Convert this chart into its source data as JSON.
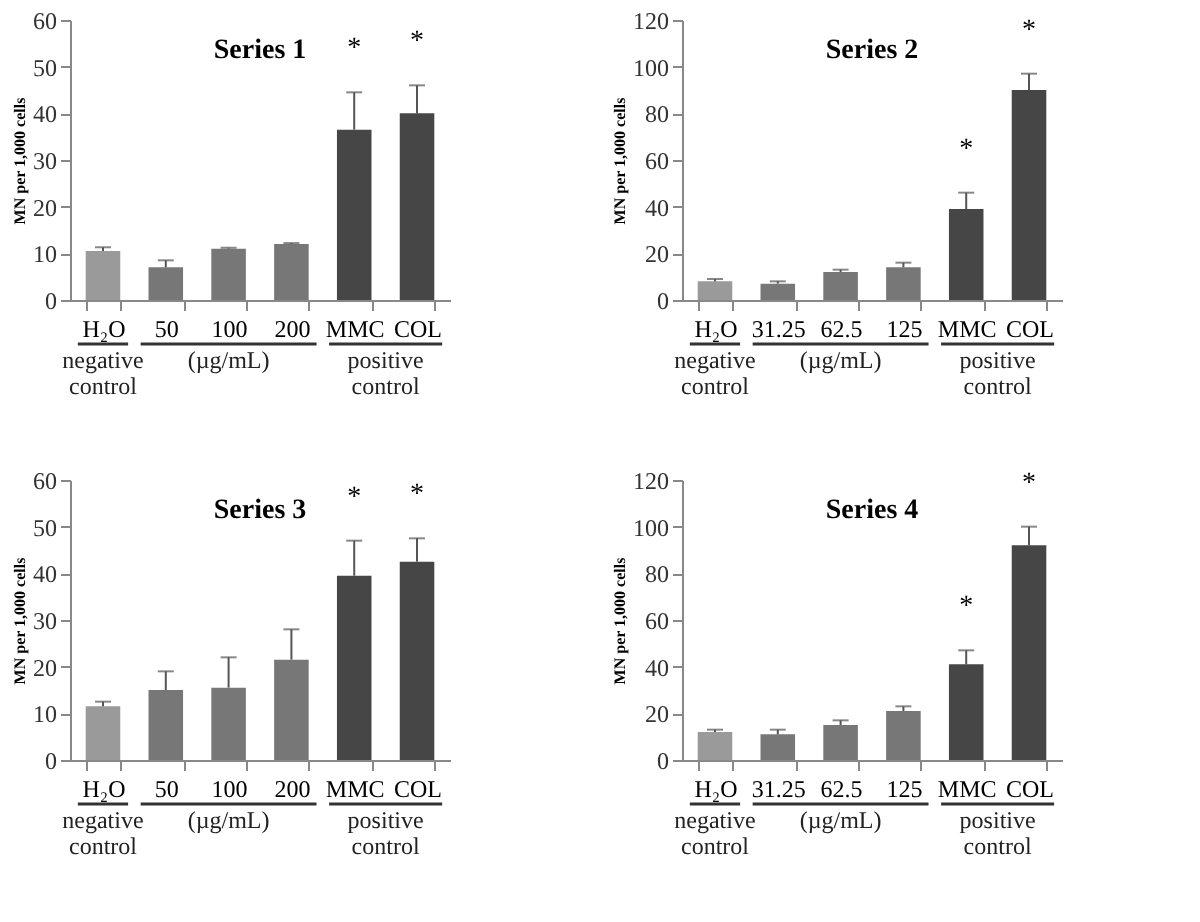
{
  "chart_data": [
    {
      "type": "bar",
      "title": "Series 1",
      "ylabel": "MN per 1,000 cells",
      "categories": [
        "H₂O",
        "50",
        "100",
        "200",
        "MMC",
        "COL"
      ],
      "values": [
        10.5,
        7,
        11,
        12,
        36.5,
        40
      ],
      "errors": [
        0.8,
        1.5,
        0.2,
        0.2,
        8,
        6
      ],
      "colors": [
        "#9a9a9a",
        "#777777",
        "#777777",
        "#777777",
        "#464646",
        "#464646"
      ],
      "ylim": [
        0,
        60
      ],
      "yticks": [
        0,
        10,
        20,
        30,
        40,
        50,
        60
      ],
      "annotations": [
        "negative control",
        "(µg/mL)",
        "positive control",
        "*",
        "*"
      ]
    },
    {
      "type": "bar",
      "title": "Series 2",
      "ylabel": "MN per 1,000 cells",
      "categories": [
        "H₂O",
        "31.25",
        "62.5",
        "125",
        "MMC",
        "COL"
      ],
      "values": [
        8,
        7,
        12,
        14,
        39,
        90
      ],
      "errors": [
        1,
        1,
        1,
        2,
        7,
        7
      ],
      "colors": [
        "#9a9a9a",
        "#777777",
        "#777777",
        "#777777",
        "#464646",
        "#464646"
      ],
      "ylim": [
        0,
        120
      ],
      "yticks": [
        0,
        20,
        40,
        60,
        80,
        100,
        120
      ],
      "annotations": [
        "negative control",
        "(µg/mL)",
        "positive control",
        "*",
        "*"
      ]
    },
    {
      "type": "bar",
      "title": "Series 3",
      "ylabel": "MN per 1,000 cells",
      "categories": [
        "H₂O",
        "50",
        "100",
        "200",
        "MMC",
        "COL"
      ],
      "values": [
        11.5,
        15,
        15.5,
        21.5,
        39.5,
        42.5
      ],
      "errors": [
        1,
        4,
        6.5,
        6.5,
        7.5,
        5
      ],
      "colors": [
        "#9a9a9a",
        "#777777",
        "#777777",
        "#777777",
        "#464646",
        "#464646"
      ],
      "ylim": [
        0,
        60
      ],
      "yticks": [
        0,
        10,
        20,
        30,
        40,
        50,
        60
      ],
      "annotations": [
        "negative control",
        "(µg/mL)",
        "positive control",
        "*",
        "*"
      ]
    },
    {
      "type": "bar",
      "title": "Series 4",
      "ylabel": "MN per 1,000 cells",
      "categories": [
        "H₂O",
        "31.25",
        "62.5",
        "125",
        "MMC",
        "COL"
      ],
      "values": [
        12,
        11,
        15,
        21,
        41,
        92
      ],
      "errors": [
        1,
        2,
        2,
        2,
        6,
        8
      ],
      "colors": [
        "#9a9a9a",
        "#777777",
        "#777777",
        "#777777",
        "#464646",
        "#464646"
      ],
      "ylim": [
        0,
        120
      ],
      "yticks": [
        0,
        20,
        40,
        60,
        80,
        100,
        120
      ],
      "annotations": [
        "negative control",
        "(µg/mL)",
        "positive control",
        "*",
        "*"
      ]
    }
  ]
}
